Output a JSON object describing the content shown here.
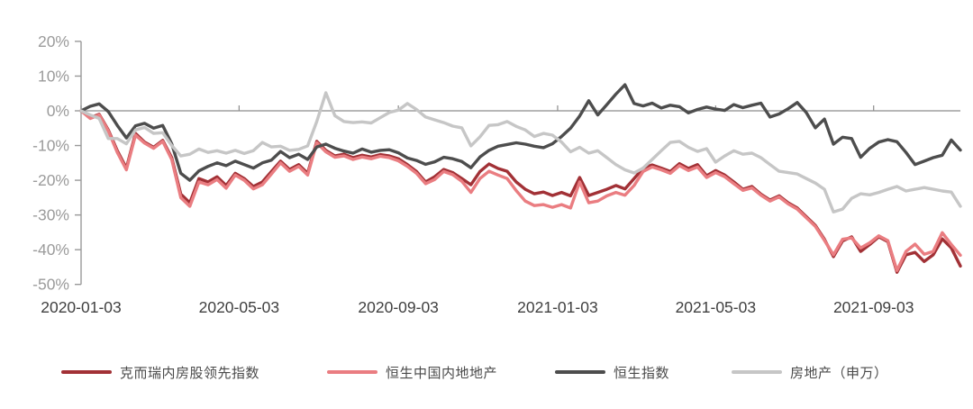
{
  "chart_data": {
    "type": "line",
    "title": "",
    "xlabel": "",
    "ylabel": "",
    "grid": "zero-baseline-only",
    "legend_position": "bottom",
    "y_axis_range": [
      -50,
      20
    ],
    "y_tick_labels": [
      "20%",
      "10%",
      "0%",
      "-10%",
      "-20%",
      "-30%",
      "-40%",
      "-50%"
    ],
    "y_tick_values": [
      20,
      10,
      0,
      -10,
      -20,
      -30,
      -40,
      -50
    ],
    "x_tick_labels": [
      "2020-01-03",
      "2020-05-03",
      "2020-09-03",
      "2021-01-03",
      "2021-05-03",
      "2021-09-03"
    ],
    "x_tick_week_offsets": [
      0,
      17.43,
      35.0,
      52.57,
      70.0,
      87.43
    ],
    "x_dates": [
      "2020-01-03",
      "2020-01-10",
      "2020-01-17",
      "2020-01-24",
      "2020-01-31",
      "2020-02-07",
      "2020-02-14",
      "2020-02-21",
      "2020-02-28",
      "2020-03-06",
      "2020-03-13",
      "2020-03-20",
      "2020-03-27",
      "2020-04-03",
      "2020-04-10",
      "2020-04-17",
      "2020-04-24",
      "2020-05-01",
      "2020-05-08",
      "2020-05-15",
      "2020-05-22",
      "2020-05-29",
      "2020-06-05",
      "2020-06-12",
      "2020-06-19",
      "2020-06-26",
      "2020-07-03",
      "2020-07-10",
      "2020-07-17",
      "2020-07-24",
      "2020-07-31",
      "2020-08-07",
      "2020-08-14",
      "2020-08-21",
      "2020-08-28",
      "2020-09-04",
      "2020-09-11",
      "2020-09-18",
      "2020-09-25",
      "2020-10-02",
      "2020-10-09",
      "2020-10-16",
      "2020-10-23",
      "2020-10-30",
      "2020-11-06",
      "2020-11-13",
      "2020-11-20",
      "2020-11-27",
      "2020-12-04",
      "2020-12-11",
      "2020-12-18",
      "2020-12-25",
      "2021-01-01",
      "2021-01-08",
      "2021-01-15",
      "2021-01-22",
      "2021-01-29",
      "2021-02-05",
      "2021-02-12",
      "2021-02-19",
      "2021-02-26",
      "2021-03-05",
      "2021-03-12",
      "2021-03-19",
      "2021-03-26",
      "2021-04-02",
      "2021-04-09",
      "2021-04-16",
      "2021-04-23",
      "2021-04-30",
      "2021-05-07",
      "2021-05-14",
      "2021-05-21",
      "2021-05-28",
      "2021-06-04",
      "2021-06-11",
      "2021-06-18",
      "2021-06-25",
      "2021-07-02",
      "2021-07-09",
      "2021-07-16",
      "2021-07-23",
      "2021-07-30",
      "2021-08-06",
      "2021-08-13",
      "2021-08-20",
      "2021-08-27",
      "2021-09-03",
      "2021-09-10",
      "2021-09-17",
      "2021-09-24",
      "2021-10-01",
      "2021-10-08",
      "2021-10-15",
      "2021-10-22",
      "2021-10-29",
      "2021-11-05",
      "2021-11-12"
    ],
    "series": [
      {
        "name": "克而瑞内房股领先指数",
        "color": "#a23136",
        "values": [
          0,
          -2,
          -1,
          -5.5,
          -11.5,
          -16.5,
          -6.5,
          -9,
          -10.5,
          -8.5,
          -13.5,
          -24,
          -26.5,
          -19.5,
          -20.5,
          -19,
          -21.5,
          -18,
          -19.5,
          -21.8,
          -20.5,
          -17.5,
          -14.5,
          -16.9,
          -15.5,
          -18,
          -8.8,
          -11.4,
          -13,
          -12.5,
          -13.5,
          -12.8,
          -13.3,
          -12.6,
          -13,
          -13.8,
          -15.5,
          -17.5,
          -20.5,
          -19,
          -16.9,
          -17.8,
          -19.5,
          -21.3,
          -17.5,
          -15.3,
          -16.6,
          -17.4,
          -20.5,
          -22.6,
          -23.9,
          -23.4,
          -24.4,
          -23.5,
          -24.5,
          -19.2,
          -24.4,
          -23.5,
          -22.6,
          -21.5,
          -22.5,
          -19.5,
          -16.5,
          -15.6,
          -16.5,
          -17.5,
          -15.2,
          -16.6,
          -15.5,
          -18.7,
          -17.2,
          -18.5,
          -20.5,
          -22.6,
          -21.8,
          -24,
          -25.7,
          -24.5,
          -26.5,
          -28,
          -30.5,
          -33,
          -37,
          -42,
          -37.5,
          -36.3,
          -40.5,
          -38.5,
          -36.3,
          -37.7,
          -46.5,
          -41.5,
          -40.8,
          -43.4,
          -41.5,
          -36.9,
          -39.5,
          -44.7
        ]
      },
      {
        "name": "恒生中国内地地产",
        "color": "#ea7d81",
        "values": [
          0,
          -2.2,
          -1.2,
          -5.8,
          -12,
          -17,
          -7,
          -9.3,
          -10.8,
          -8.8,
          -14,
          -25,
          -27.5,
          -20.5,
          -21.3,
          -19.8,
          -22.3,
          -18.5,
          -20,
          -22.5,
          -21.3,
          -18.2,
          -15,
          -17.4,
          -16,
          -18.5,
          -9.2,
          -11.8,
          -13.4,
          -13,
          -14,
          -13.3,
          -13.8,
          -13.1,
          -13.5,
          -14.4,
          -16,
          -18,
          -21,
          -19.8,
          -17.5,
          -18.4,
          -20.3,
          -23.5,
          -19.5,
          -17.4,
          -18.5,
          -19.5,
          -23,
          -26,
          -27.3,
          -27,
          -27.8,
          -27,
          -28,
          -20.5,
          -26.5,
          -26,
          -24.5,
          -23.5,
          -24.3,
          -21.5,
          -17.5,
          -16.2,
          -17,
          -18,
          -15.8,
          -17.2,
          -16.2,
          -19.2,
          -17.8,
          -19,
          -21,
          -22.9,
          -22.2,
          -24.3,
          -26,
          -24.8,
          -26.8,
          -28.3,
          -30.8,
          -33.3,
          -37.3,
          -41.5,
          -37,
          -36.6,
          -39.5,
          -38,
          -36,
          -37.4,
          -46,
          -40.5,
          -38.4,
          -41.3,
          -40.5,
          -35.1,
          -38.5,
          -41.6
        ]
      },
      {
        "name": "恒生指数",
        "color": "#4d4d4d",
        "values": [
          0,
          1.3,
          2,
          -0.2,
          -4.2,
          -7.8,
          -4.3,
          -3.6,
          -5,
          -4.2,
          -9.5,
          -18,
          -20,
          -17.3,
          -16,
          -15,
          -15.8,
          -14.5,
          -15.5,
          -16.5,
          -15,
          -14.2,
          -11.7,
          -13.5,
          -12.5,
          -14,
          -10.4,
          -9.6,
          -10.8,
          -11.6,
          -12.2,
          -11,
          -11.9,
          -11.4,
          -11.2,
          -12.1,
          -13.6,
          -14.3,
          -15.4,
          -14.7,
          -13.4,
          -13.8,
          -14.6,
          -16.4,
          -13.3,
          -11.4,
          -10.2,
          -9.7,
          -9.2,
          -9.6,
          -10.2,
          -10.6,
          -9.5,
          -7.4,
          -5,
          -1.5,
          2.9,
          -1.2,
          1.8,
          4.8,
          7.5,
          2.1,
          1.4,
          2.2,
          0.8,
          1.6,
          1.2,
          -0.6,
          0.4,
          1.1,
          0.5,
          0.1,
          1.8,
          0.9,
          1.6,
          2.2,
          -1.8,
          -0.9,
          0.6,
          2.4,
          -0.5,
          -4.9,
          -2.4,
          -9.6,
          -7.6,
          -8,
          -13.4,
          -10.8,
          -9,
          -8.3,
          -8.9,
          -12,
          -15.5,
          -14.5,
          -13.5,
          -12.8,
          -8.4,
          -11.3
        ]
      },
      {
        "name": "房地产（申万）",
        "color": "#c6c6c6",
        "values": [
          0,
          -1.2,
          -2.2,
          -8,
          -8,
          -9.5,
          -5.5,
          -4.8,
          -6.5,
          -6.3,
          -10,
          -13,
          -12.5,
          -11,
          -12,
          -11.5,
          -12.2,
          -11.4,
          -12.3,
          -11.5,
          -9.1,
          -10.4,
          -10.2,
          -11.4,
          -11.1,
          -10.1,
          -3.1,
          5.2,
          -1.4,
          -3.1,
          -3.4,
          -3.2,
          -3.5,
          -2,
          -0.5,
          0.2,
          2.1,
          0.4,
          -1.8,
          -2.6,
          -3.4,
          -4.4,
          -4.9,
          -10.1,
          -7.5,
          -4.2,
          -4,
          -3.1,
          -4.5,
          -5.5,
          -7.4,
          -6.5,
          -7,
          -9,
          -11.8,
          -10.5,
          -12.2,
          -11.5,
          -13.5,
          -15.5,
          -17,
          -17.9,
          -16.5,
          -14,
          -11.5,
          -9.1,
          -8.8,
          -10.5,
          -11.7,
          -10.9,
          -14.8,
          -13,
          -11.5,
          -12.5,
          -12.2,
          -13.5,
          -15.5,
          -17.4,
          -17.8,
          -18.2,
          -19.5,
          -20.8,
          -22.6,
          -29.1,
          -28.3,
          -25.2,
          -23.9,
          -24.2,
          -23.5,
          -22.6,
          -21.8,
          -23.1,
          -22.6,
          -22.1,
          -22.6,
          -23.1,
          -23.4,
          -27.5
        ]
      }
    ]
  },
  "style": {
    "axis_color": "#999999",
    "zero_line_color": "#8c8c8c",
    "y_label_color": "#9b9b9b",
    "x_label_color": "#404040",
    "background": "#ffffff"
  }
}
